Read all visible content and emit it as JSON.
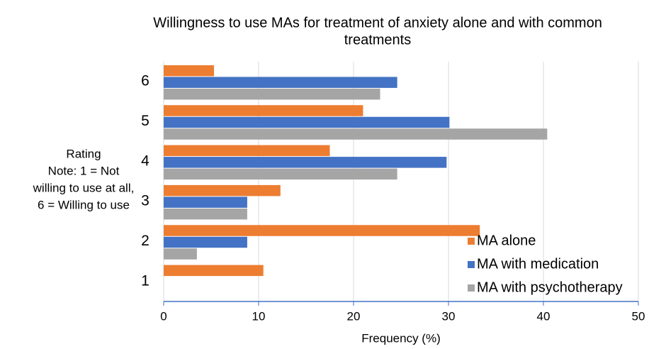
{
  "chart_data": {
    "type": "barh",
    "title": [
      "Willingness to use MAs for treatment of anxiety alone and with common",
      "treatments"
    ],
    "x_label": "Frequency (%)",
    "y_label": [
      "Rating",
      "Note: 1 = Not",
      "willing to use at all,",
      "6 = Willing to use"
    ],
    "categories": [
      "1",
      "2",
      "3",
      "4",
      "5",
      "6"
    ],
    "series": [
      {
        "name": "MA alone",
        "color": "#ed7d31",
        "values": [
          10.5,
          33.3,
          12.3,
          17.5,
          21.0,
          5.3
        ]
      },
      {
        "name": "MA with medication",
        "color": "#4472c4",
        "values": [
          0,
          8.8,
          8.8,
          29.8,
          30.1,
          24.6
        ]
      },
      {
        "name": "MA with psychotherapy",
        "color": "#a5a5a5",
        "values": [
          0,
          3.5,
          8.8,
          24.6,
          40.4,
          22.8
        ]
      }
    ],
    "xlim": [
      0,
      50
    ],
    "xticks": [
      0,
      10,
      20,
      30,
      40,
      50
    ],
    "grid": true,
    "legend": "lower right"
  }
}
